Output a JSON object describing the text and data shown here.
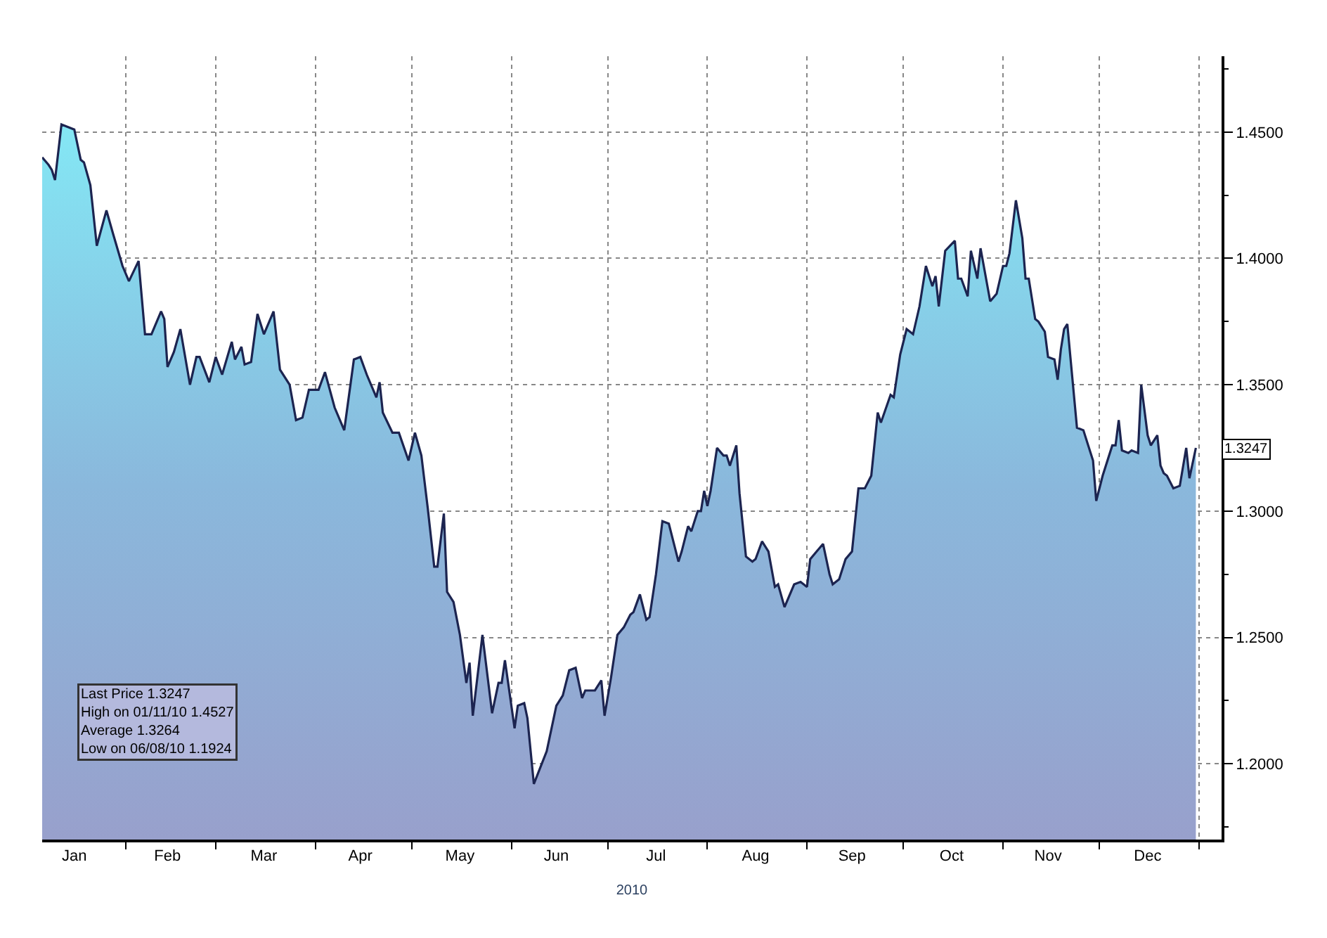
{
  "chart_data": {
    "type": "area",
    "xlabel": "2010",
    "xlim": [
      "2010-01-06",
      "2011-01-08"
    ],
    "xticks": [
      {
        "value": "2010-01-16",
        "label": "Jan"
      },
      {
        "value": "2010-02-14",
        "label": "Feb"
      },
      {
        "value": "2010-03-16",
        "label": "Mar"
      },
      {
        "value": "2010-04-15",
        "label": "Apr"
      },
      {
        "value": "2010-05-16",
        "label": "May"
      },
      {
        "value": "2010-06-15",
        "label": "Jun"
      },
      {
        "value": "2010-07-16",
        "label": "Jul"
      },
      {
        "value": "2010-08-16",
        "label": "Aug"
      },
      {
        "value": "2010-09-15",
        "label": "Sep"
      },
      {
        "value": "2010-10-16",
        "label": "Oct"
      },
      {
        "value": "2010-11-15",
        "label": "Nov"
      },
      {
        "value": "2010-12-16",
        "label": "Dec"
      },
      {
        "value": "2010-02-01",
        "label": null
      },
      {
        "value": "2010-03-01",
        "label": null
      },
      {
        "value": "2010-04-01",
        "label": null
      },
      {
        "value": "2010-05-01",
        "label": null
      },
      {
        "value": "2010-06-01",
        "label": null
      },
      {
        "value": "2010-07-01",
        "label": null
      },
      {
        "value": "2010-08-01",
        "label": null
      },
      {
        "value": "2010-09-01",
        "label": null
      },
      {
        "value": "2010-10-01",
        "label": null
      },
      {
        "value": "2010-11-01",
        "label": null
      },
      {
        "value": "2010-12-01",
        "label": null
      },
      {
        "value": "2011-01-01",
        "label": null
      }
    ],
    "ylim": [
      1.17,
      1.48
    ],
    "yticks": [
      {
        "value": 1.2,
        "label": "1.2000"
      },
      {
        "value": 1.25,
        "label": "1.2500"
      },
      {
        "value": 1.3,
        "label": "1.3000"
      },
      {
        "value": 1.35,
        "label": "1.3500"
      },
      {
        "value": 1.4,
        "label": "1.4000"
      },
      {
        "value": 1.45,
        "label": "1.4500"
      },
      {
        "value": 1.175,
        "label": null
      },
      {
        "value": 1.225,
        "label": null
      },
      {
        "value": 1.275,
        "label": null
      },
      {
        "value": 1.325,
        "label": null
      },
      {
        "value": 1.375,
        "label": null
      },
      {
        "value": 1.425,
        "label": null
      },
      {
        "value": 1.475,
        "label": null
      }
    ],
    "grid": true,
    "annotations": [
      "Last Price 1.3247",
      "High on 01/11/10 1.4527",
      "Average 1.3264",
      "Low on 06/08/10 1.1924",
      {
        "text": "1.3247",
        "y": 1.3247
      }
    ],
    "series": [
      {
        "color": "#1c2450",
        "x": [
          "2010-01-06",
          "2010-01-08",
          "2010-01-09",
          "2010-01-10",
          "2010-01-12",
          "2010-01-16",
          "2010-01-18",
          "2010-01-19",
          "2010-01-21",
          "2010-01-23",
          "2010-01-26",
          "2010-01-28",
          "2010-01-31",
          "2010-02-02",
          "2010-02-05",
          "2010-02-07",
          "2010-02-09",
          "2010-02-12",
          "2010-02-13",
          "2010-02-14",
          "2010-02-16",
          "2010-02-18",
          "2010-02-21",
          "2010-02-23",
          "2010-02-24",
          "2010-02-27",
          "2010-03-01",
          "2010-03-03",
          "2010-03-06",
          "2010-03-07",
          "2010-03-09",
          "2010-03-10",
          "2010-03-12",
          "2010-03-14",
          "2010-03-16",
          "2010-03-19",
          "2010-03-21",
          "2010-03-24",
          "2010-03-26",
          "2010-03-28",
          "2010-03-30",
          "2010-04-02",
          "2010-04-04",
          "2010-04-07",
          "2010-04-10",
          "2010-04-13",
          "2010-04-15",
          "2010-04-17",
          "2010-04-20",
          "2010-04-21",
          "2010-04-22",
          "2010-04-25",
          "2010-04-27",
          "2010-04-30",
          "2010-05-02",
          "2010-05-04",
          "2010-05-06",
          "2010-05-08",
          "2010-05-09",
          "2010-05-11",
          "2010-05-12",
          "2010-05-14",
          "2010-05-16",
          "2010-05-18",
          "2010-05-19",
          "2010-05-20",
          "2010-05-23",
          "2010-05-26",
          "2010-05-28",
          "2010-05-29",
          "2010-05-30",
          "2010-06-02",
          "2010-06-03",
          "2010-06-05",
          "2010-06-06",
          "2010-06-08",
          "2010-06-12",
          "2010-06-15",
          "2010-06-17",
          "2010-06-19",
          "2010-06-21",
          "2010-06-23",
          "2010-06-24",
          "2010-06-27",
          "2010-06-29",
          "2010-06-30",
          "2010-07-02",
          "2010-07-04",
          "2010-07-06",
          "2010-07-08",
          "2010-07-09",
          "2010-07-11",
          "2010-07-13",
          "2010-07-14",
          "2010-07-16",
          "2010-07-18",
          "2010-07-20",
          "2010-07-23",
          "2010-07-24",
          "2010-07-26",
          "2010-07-27",
          "2010-07-29",
          "2010-07-30",
          "2010-07-31",
          "2010-08-01",
          "2010-08-02",
          "2010-08-04",
          "2010-08-06",
          "2010-08-07",
          "2010-08-08",
          "2010-08-10",
          "2010-08-11",
          "2010-08-13",
          "2010-08-15",
          "2010-08-16",
          "2010-08-18",
          "2010-08-20",
          "2010-08-22",
          "2010-08-23",
          "2010-08-25",
          "2010-08-28",
          "2010-08-30",
          "2010-09-01",
          "2010-09-02",
          "2010-09-04",
          "2010-09-06",
          "2010-09-08",
          "2010-09-09",
          "2010-09-11",
          "2010-09-13",
          "2010-09-15",
          "2010-09-17",
          "2010-09-19",
          "2010-09-21",
          "2010-09-23",
          "2010-09-24",
          "2010-09-27",
          "2010-09-28",
          "2010-09-30",
          "2010-10-02",
          "2010-10-04",
          "2010-10-06",
          "2010-10-08",
          "2010-10-10",
          "2010-10-11",
          "2010-10-12",
          "2010-10-14",
          "2010-10-17",
          "2010-10-18",
          "2010-10-19",
          "2010-10-21",
          "2010-10-22",
          "2010-10-24",
          "2010-10-25",
          "2010-10-26",
          "2010-10-28",
          "2010-10-30",
          "2010-11-01",
          "2010-11-02",
          "2010-11-03",
          "2010-11-05",
          "2010-11-07",
          "2010-11-08",
          "2010-11-09",
          "2010-11-11",
          "2010-11-12",
          "2010-11-14",
          "2010-11-15",
          "2010-11-17",
          "2010-11-18",
          "2010-11-19",
          "2010-11-20",
          "2010-11-21",
          "2010-11-24",
          "2010-11-26",
          "2010-11-29",
          "2010-11-30",
          "2010-12-02",
          "2010-12-05",
          "2010-12-06",
          "2010-12-07",
          "2010-12-08",
          "2010-12-10",
          "2010-12-11",
          "2010-12-13",
          "2010-12-14",
          "2010-12-16",
          "2010-12-17",
          "2010-12-19",
          "2010-12-20",
          "2010-12-21",
          "2010-12-22",
          "2010-12-24",
          "2010-12-26",
          "2010-12-28",
          "2010-12-29",
          "2010-12-31"
        ],
        "values": [
          1.44,
          1.437,
          1.435,
          1.431,
          1.453,
          1.451,
          1.439,
          1.438,
          1.429,
          1.405,
          1.419,
          1.41,
          1.397,
          1.391,
          1.399,
          1.37,
          1.37,
          1.379,
          1.376,
          1.357,
          1.363,
          1.372,
          1.35,
          1.361,
          1.361,
          1.351,
          1.361,
          1.354,
          1.367,
          1.36,
          1.365,
          1.358,
          1.359,
          1.378,
          1.37,
          1.379,
          1.356,
          1.35,
          1.336,
          1.337,
          1.348,
          1.348,
          1.355,
          1.341,
          1.332,
          1.36,
          1.361,
          1.354,
          1.345,
          1.351,
          1.339,
          1.331,
          1.331,
          1.32,
          1.331,
          1.322,
          1.301,
          1.278,
          1.278,
          1.299,
          1.268,
          1.264,
          1.251,
          1.232,
          1.24,
          1.219,
          1.251,
          1.22,
          1.232,
          1.232,
          1.241,
          1.214,
          1.223,
          1.224,
          1.218,
          1.192,
          1.205,
          1.223,
          1.227,
          1.237,
          1.238,
          1.226,
          1.229,
          1.229,
          1.233,
          1.219,
          1.234,
          1.251,
          1.254,
          1.259,
          1.26,
          1.267,
          1.257,
          1.258,
          1.275,
          1.296,
          1.295,
          1.28,
          1.284,
          1.294,
          1.292,
          1.3,
          1.3,
          1.308,
          1.302,
          1.308,
          1.325,
          1.322,
          1.322,
          1.318,
          1.326,
          1.307,
          1.282,
          1.28,
          1.281,
          1.288,
          1.284,
          1.27,
          1.271,
          1.262,
          1.271,
          1.272,
          1.27,
          1.281,
          1.284,
          1.287,
          1.275,
          1.271,
          1.273,
          1.281,
          1.284,
          1.309,
          1.309,
          1.314,
          1.339,
          1.335,
          1.346,
          1.345,
          1.362,
          1.372,
          1.37,
          1.381,
          1.397,
          1.389,
          1.393,
          1.381,
          1.403,
          1.407,
          1.392,
          1.392,
          1.385,
          1.403,
          1.392,
          1.404,
          1.397,
          1.383,
          1.386,
          1.397,
          1.397,
          1.402,
          1.423,
          1.408,
          1.392,
          1.392,
          1.376,
          1.375,
          1.371,
          1.361,
          1.36,
          1.352,
          1.364,
          1.372,
          1.374,
          1.333,
          1.332,
          1.32,
          1.304,
          1.314,
          1.326,
          1.326,
          1.336,
          1.324,
          1.323,
          1.324,
          1.323,
          1.35,
          1.33,
          1.326,
          1.33,
          1.318,
          1.315,
          1.314,
          1.309,
          1.31,
          1.325,
          1.313,
          1.325
        ]
      }
    ]
  }
}
